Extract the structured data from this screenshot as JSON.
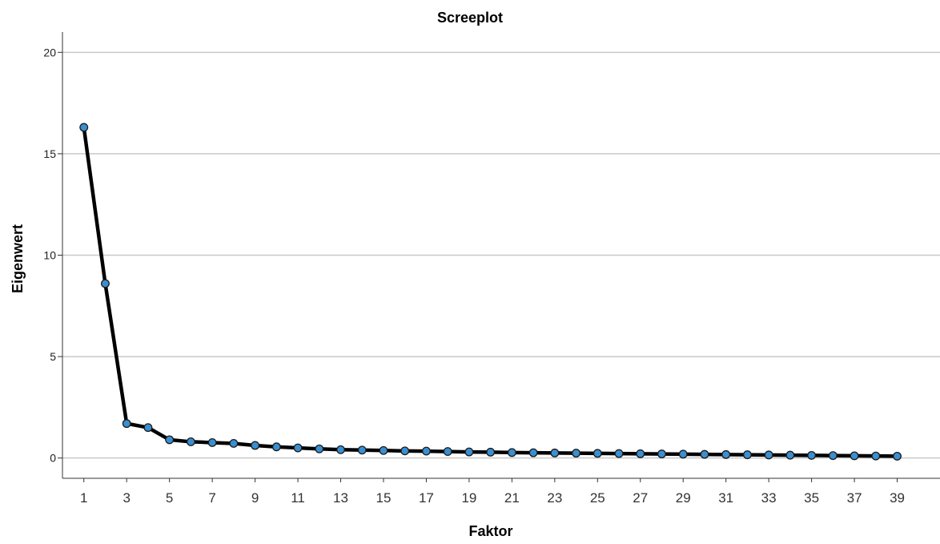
{
  "chart_data": {
    "type": "line",
    "title": "Screeplot",
    "xlabel": "Faktor",
    "ylabel": "Eigenwert",
    "ylim": [
      -1,
      21
    ],
    "yticks": [
      "0",
      "5",
      "10",
      "15",
      "20"
    ],
    "xticks": [
      "1",
      "3",
      "5",
      "7",
      "9",
      "11",
      "13",
      "15",
      "17",
      "19",
      "21",
      "23",
      "25",
      "27",
      "29",
      "31",
      "33",
      "35",
      "37",
      "39"
    ],
    "grid": "horizontal",
    "series": [
      {
        "x": [
          1,
          2,
          3,
          4,
          5,
          6,
          7,
          8,
          9,
          10,
          11,
          12,
          13,
          14,
          15,
          16,
          17,
          18,
          19,
          20,
          21,
          22,
          23,
          24,
          25,
          26,
          27,
          28,
          29,
          30,
          31,
          32,
          33,
          34,
          35,
          36,
          37,
          38,
          39
        ],
        "values": [
          16.3,
          8.6,
          1.7,
          1.5,
          0.9,
          0.8,
          0.76,
          0.72,
          0.62,
          0.55,
          0.5,
          0.45,
          0.41,
          0.39,
          0.37,
          0.35,
          0.34,
          0.32,
          0.3,
          0.29,
          0.27,
          0.26,
          0.25,
          0.24,
          0.23,
          0.22,
          0.21,
          0.2,
          0.19,
          0.18,
          0.17,
          0.16,
          0.15,
          0.14,
          0.13,
          0.12,
          0.11,
          0.1,
          0.09
        ]
      }
    ],
    "colors": {
      "line": "#000000",
      "marker_fill": "#3a8fd0",
      "marker_edge": "#1a1a1a",
      "grid": "#c8c8c8",
      "axis": "#333333"
    }
  }
}
